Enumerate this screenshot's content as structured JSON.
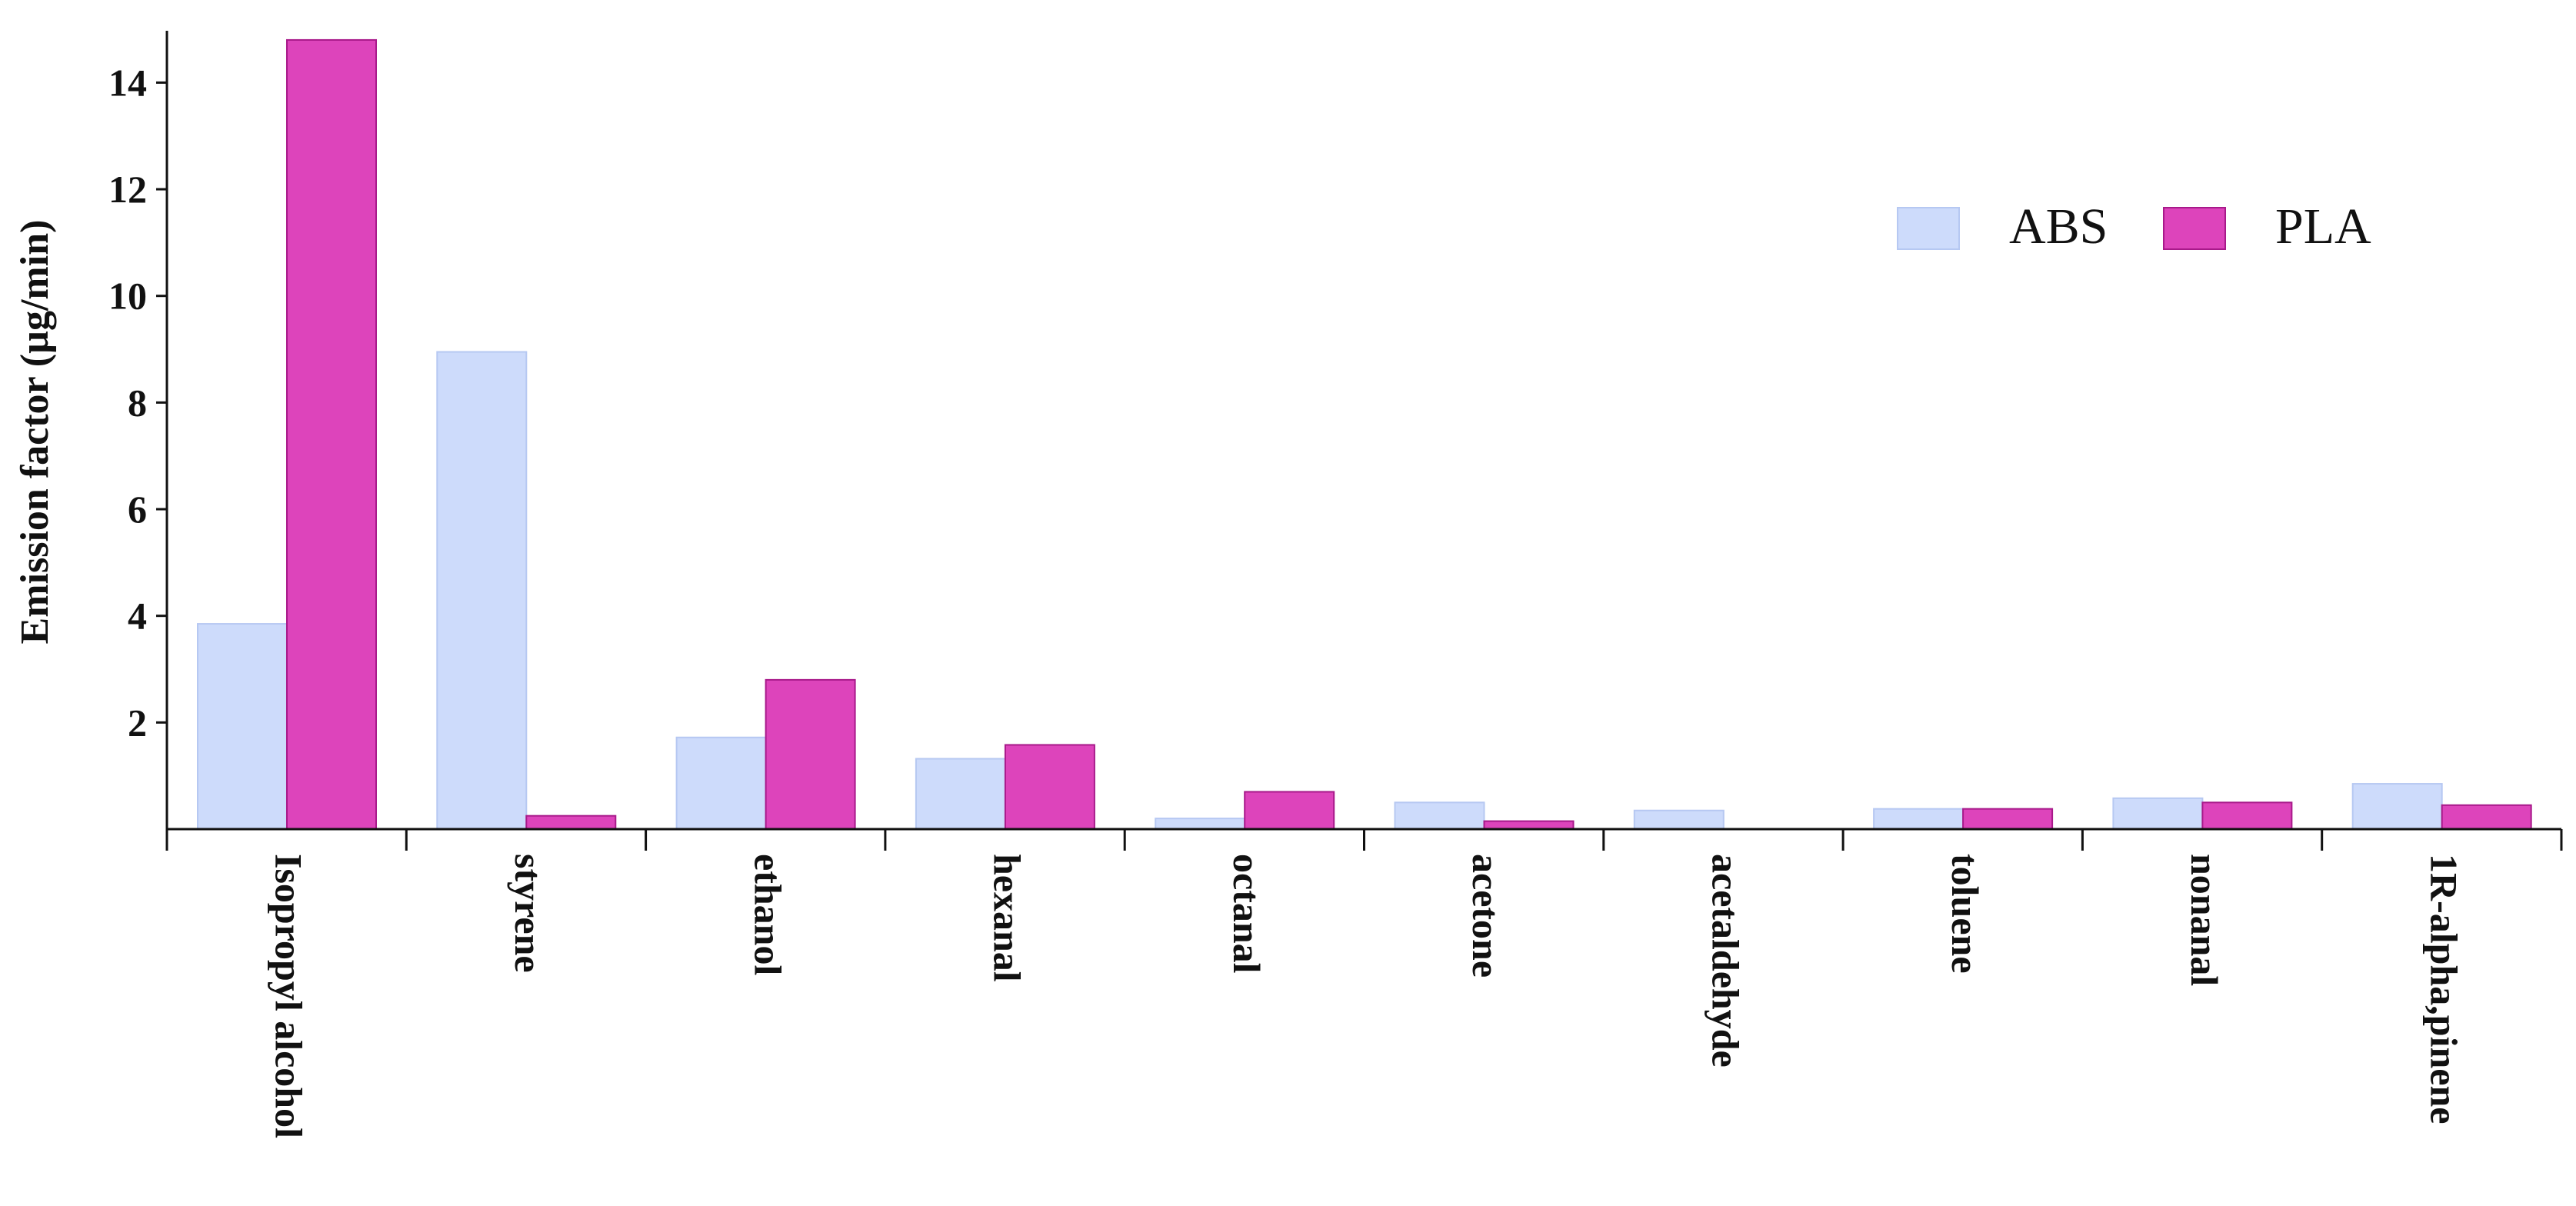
{
  "chart_data": {
    "type": "bar",
    "ylabel": "Emission factor (µg/min)",
    "xlabel": "",
    "ylim": [
      0,
      14.9
    ],
    "yticks": [
      2,
      4,
      6,
      8,
      10,
      12,
      14
    ],
    "categories": [
      "Isopropyl alcohol",
      "styrene",
      "ethanol",
      "hexanal",
      "octanal",
      "acetone",
      "acetaldehyde",
      "toluene",
      "nonanal",
      "1R-alpha,pinene"
    ],
    "series": [
      {
        "name": "ABS",
        "color": "#cddbfb",
        "values": [
          3.85,
          8.95,
          1.72,
          1.32,
          0.2,
          0.5,
          0.35,
          0.38,
          0.58,
          0.85
        ]
      },
      {
        "name": "PLA",
        "color": "#dd44bb",
        "values": [
          14.8,
          0.25,
          2.8,
          1.58,
          0.7,
          0.15,
          0.0,
          0.38,
          0.5,
          0.45
        ]
      }
    ],
    "legend_position": "top-right",
    "grid": false
  }
}
